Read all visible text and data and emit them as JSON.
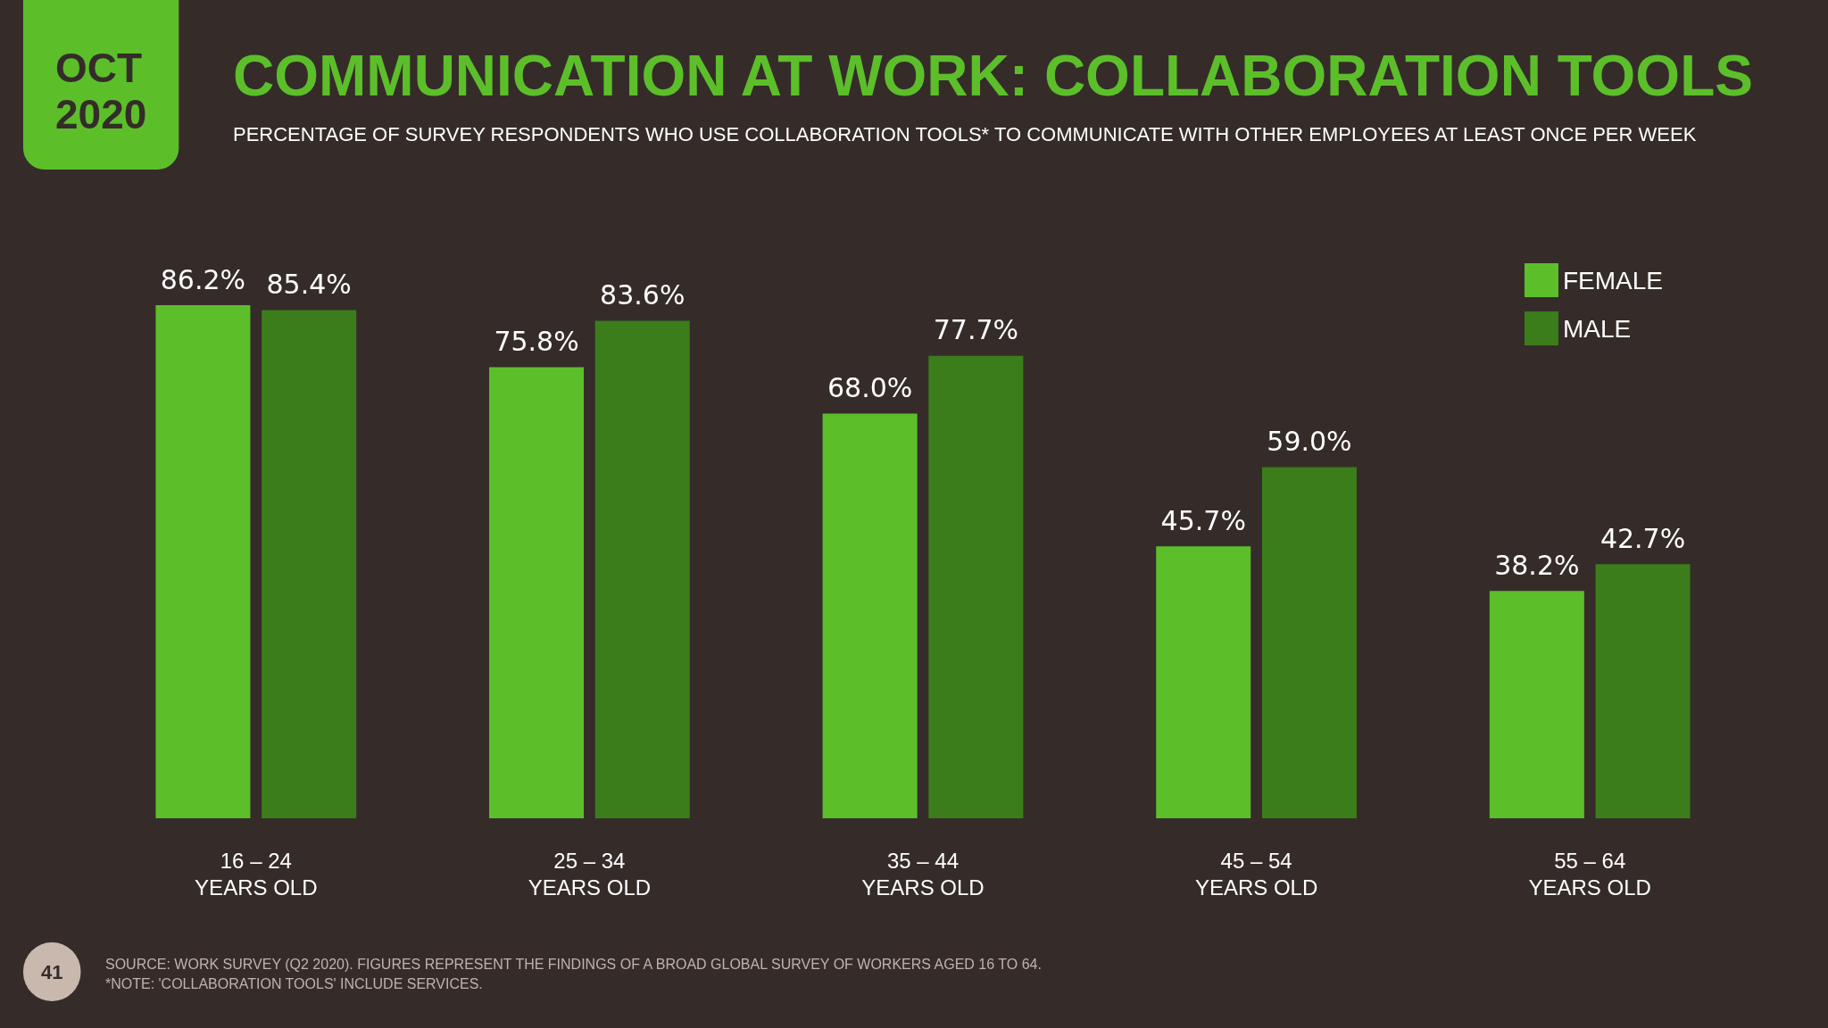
{
  "chart_data": {
    "type": "bar",
    "title": "COMMUNICATION AT WORK: COLLABORATION TOOLS",
    "subtitle": "PERCENTAGE OF SURVEY RESPONDENTS WHO USE COLLABORATION TOOLS* TO COMMUNICATE WITH OTHER EMPLOYEES AT LEAST ONCE PER WEEK",
    "categories": [
      "16 – 24\nYEARS OLD",
      "25 – 34\nYEARS OLD",
      "35 – 44\nYEARS OLD",
      "45 – 54\nYEARS OLD",
      "55 – 64\nYEARS OLD"
    ],
    "series": [
      {
        "name": "FEMALE",
        "color": "#5cbf2a",
        "values": [
          86.2,
          75.8,
          68.0,
          45.7,
          38.2
        ],
        "value_labels": [
          "86.2%",
          "75.8%",
          "68.0%",
          "45.7%",
          "38.2%"
        ]
      },
      {
        "name": "MALE",
        "color": "#3b7d1a",
        "values": [
          85.4,
          83.6,
          77.7,
          59.0,
          42.7
        ],
        "value_labels": [
          "85.4%",
          "83.6%",
          "77.7%",
          "59.0%",
          "42.7%"
        ]
      }
    ],
    "legend": "top right",
    "annotations": [
      "OCT\n2020",
      "41",
      "SOURCE: WORK SURVEY (Q2 2020). FIGURES REPRESENT THE FINDINGS OF A BROAD GLOBAL SURVEY OF WORKERS AGED 16 TO 64.",
      "*NOTE: 'COLLABORATION TOOLS' INCLUDE SERVICES."
    ]
  }
}
